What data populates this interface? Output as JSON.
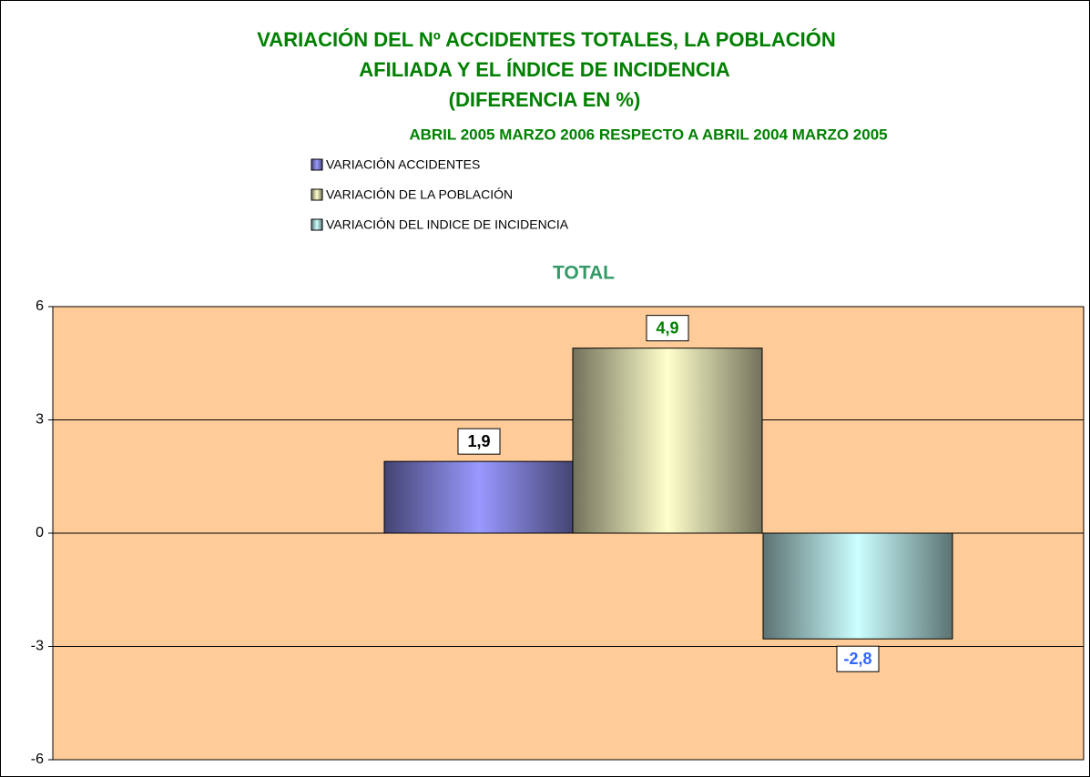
{
  "chart_data": {
    "type": "bar",
    "title": [
      "VARIACIÓN DEL Nº ACCIDENTES TOTALES, LA POBLACIÓN",
      "AFILIADA Y EL ÍNDICE DE INCIDENCIA",
      "(DIFERENCIA EN %)"
    ],
    "subtitle": "ABRIL 2005 MARZO 2006 RESPECTO A ABRIL 2004 MARZO 2005",
    "categories": [
      "TOTAL"
    ],
    "series": [
      {
        "name": "VARIACIÓN ACCIDENTES",
        "color": "#9999ff",
        "label_color": "#000000",
        "values": [
          1.9
        ],
        "value_labels": [
          "1,9"
        ]
      },
      {
        "name": "VARIACIÓN DE LA POBLACIÓN",
        "color": "#ffffcc",
        "label_color": "#008000",
        "values": [
          4.9
        ],
        "value_labels": [
          "4,9"
        ]
      },
      {
        "name": "VARIACIÓN DEL INDICE DE INCIDENCIA",
        "color": "#ccffff",
        "label_color": "#3366ff",
        "values": [
          -2.8
        ],
        "value_labels": [
          "-2,8"
        ]
      }
    ],
    "ylim": [
      -6,
      6
    ],
    "yticks": [
      -6,
      -3,
      0,
      3,
      6
    ],
    "grid": true,
    "plot_background": "#ffcc99"
  }
}
